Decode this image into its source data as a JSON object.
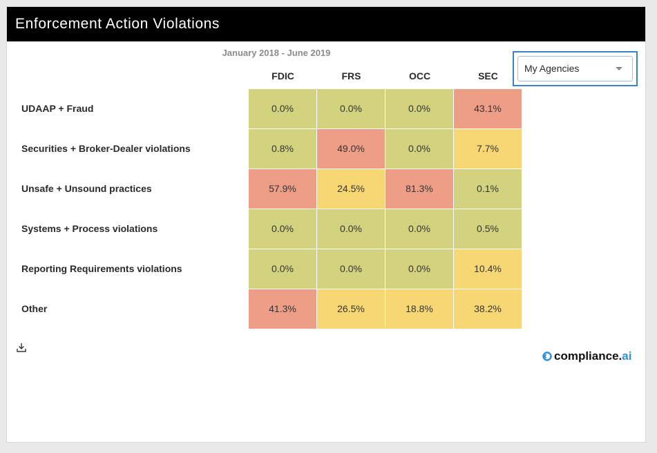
{
  "header": {
    "title": "Enforcement Action Violations"
  },
  "subtitle": "January 2018 - June 2019",
  "filter": {
    "selected": "My Agencies"
  },
  "logo": {
    "text_main": "compliance.",
    "text_accent": "ai"
  },
  "icons": {
    "download": "download-icon",
    "dropdown": "chevron-down-icon",
    "logo": "compliance-logo-icon"
  },
  "colors": {
    "low": "#d3d37f",
    "medium": "#f7d774",
    "high": "#ee9e87",
    "header_bg": "#000000",
    "accent": "#3b82c4"
  },
  "chart_data": {
    "type": "heatmap",
    "title": "Enforcement Action Violations",
    "subtitle": "January 2018 - June 2019",
    "columns": [
      "FDIC",
      "FRS",
      "OCC",
      "SEC"
    ],
    "rows": [
      "UDAAP + Fraud",
      "Securities + Broker-Dealer violations",
      "Unsafe + Unsound practices",
      "Systems + Process violations",
      "Reporting Requirements violations",
      "Other"
    ],
    "values": [
      [
        "0.0%",
        "0.0%",
        "0.0%",
        "43.1%"
      ],
      [
        "0.8%",
        "49.0%",
        "0.0%",
        "7.7%"
      ],
      [
        "57.9%",
        "24.5%",
        "81.3%",
        "0.1%"
      ],
      [
        "0.0%",
        "0.0%",
        "0.0%",
        "0.5%"
      ],
      [
        "0.0%",
        "0.0%",
        "0.0%",
        "10.4%"
      ],
      [
        "41.3%",
        "26.5%",
        "18.8%",
        "38.2%"
      ]
    ],
    "levels": [
      [
        "low",
        "low",
        "low",
        "high"
      ],
      [
        "low",
        "high",
        "low",
        "medium"
      ],
      [
        "high",
        "medium",
        "high",
        "low"
      ],
      [
        "low",
        "low",
        "low",
        "low"
      ],
      [
        "low",
        "low",
        "low",
        "medium"
      ],
      [
        "high",
        "medium",
        "medium",
        "medium"
      ]
    ]
  }
}
